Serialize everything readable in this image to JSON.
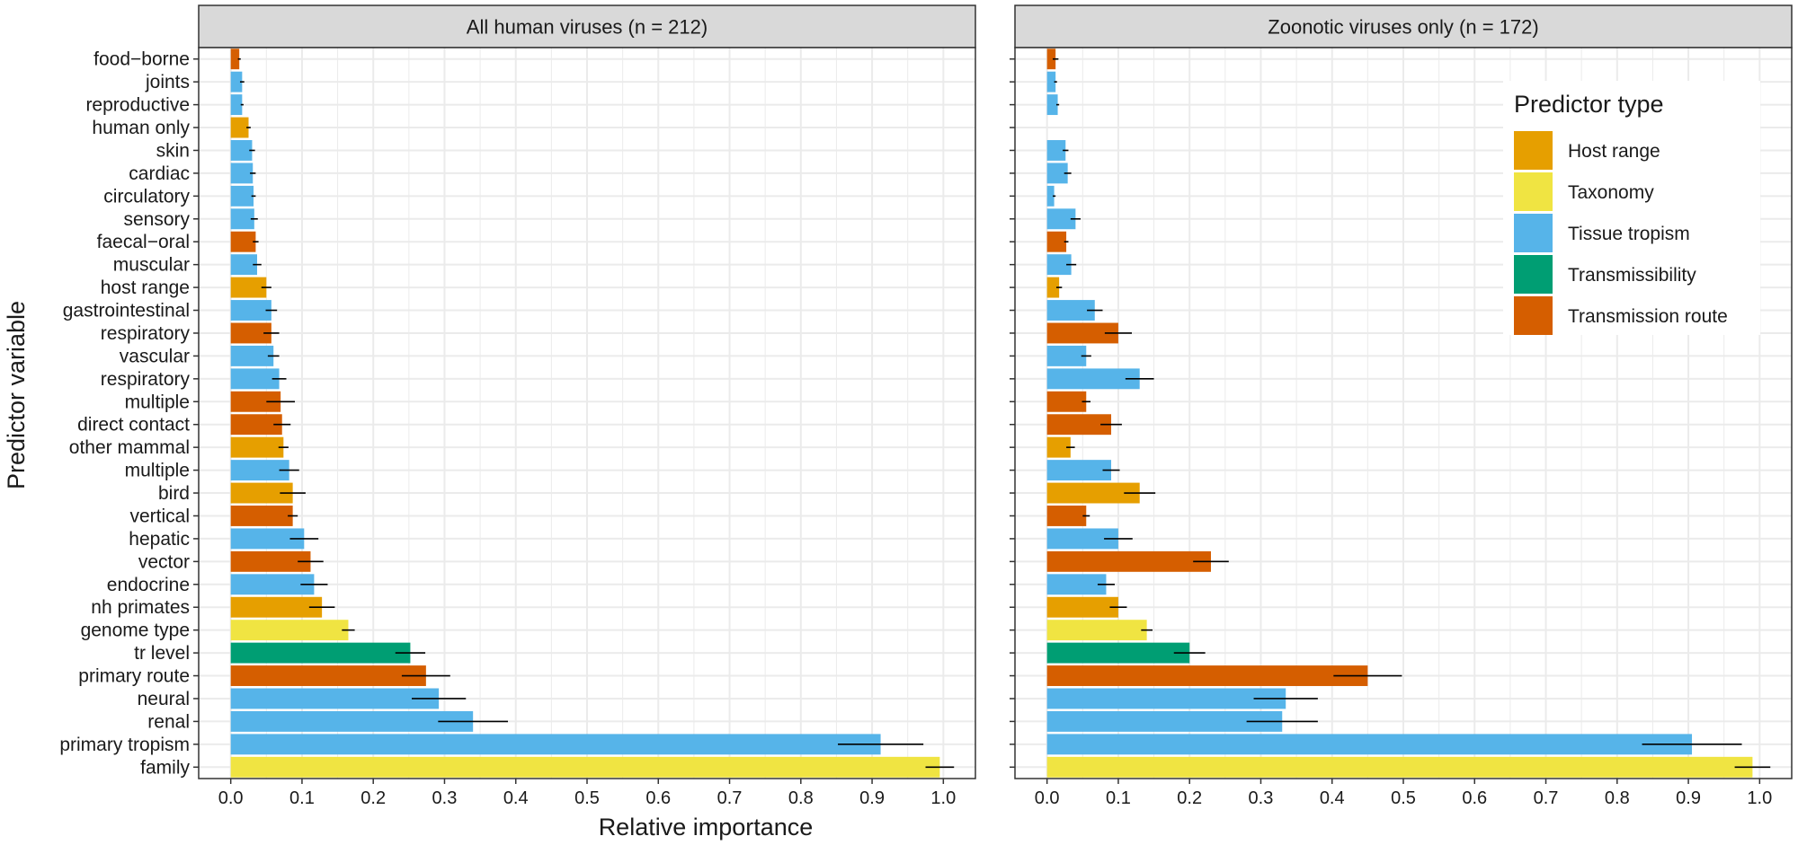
{
  "chart_data": {
    "type": "bar",
    "orientation": "horizontal",
    "xlabel": "Relative importance",
    "ylabel": "Predictor variable",
    "xlim": [
      0,
      1.0
    ],
    "xticks": [
      "0.0",
      "0.1",
      "0.2",
      "0.3",
      "0.4",
      "0.5",
      "0.6",
      "0.7",
      "0.8",
      "0.9",
      "1.0"
    ],
    "grid": true,
    "legend": {
      "title": "Predictor type",
      "placement": "top-right, inside right panel",
      "items": [
        {
          "label": "Host range",
          "color": "#E69F00"
        },
        {
          "label": "Taxonomy",
          "color": "#F0E442"
        },
        {
          "label": "Tissue tropism",
          "color": "#56B4E9"
        },
        {
          "label": "Transmissibility",
          "color": "#009E73"
        },
        {
          "label": "Transmission route",
          "color": "#D55E00"
        }
      ]
    },
    "categories": [
      "food−borne",
      "joints",
      "reproductive",
      "human only",
      "skin",
      "cardiac",
      "circulatory",
      "sensory",
      "faecal−oral",
      "muscular",
      "host range",
      "gastrointestinal",
      "respiratory",
      "vascular",
      "respiratory",
      "multiple",
      "direct contact",
      "other mammal",
      "multiple",
      "bird",
      "vertical",
      "hepatic",
      "vector",
      "endocrine",
      "nh primates",
      "genome type",
      "tr level",
      "primary route",
      "neural",
      "renal",
      "primary tropism",
      "family"
    ],
    "types": [
      "Transmission route",
      "Tissue tropism",
      "Tissue tropism",
      "Host range",
      "Tissue tropism",
      "Tissue tropism",
      "Tissue tropism",
      "Tissue tropism",
      "Transmission route",
      "Tissue tropism",
      "Host range",
      "Tissue tropism",
      "Transmission route",
      "Tissue tropism",
      "Tissue tropism",
      "Transmission route",
      "Transmission route",
      "Host range",
      "Tissue tropism",
      "Host range",
      "Transmission route",
      "Tissue tropism",
      "Transmission route",
      "Tissue tropism",
      "Host range",
      "Taxonomy",
      "Transmissibility",
      "Transmission route",
      "Tissue tropism",
      "Tissue tropism",
      "Tissue tropism",
      "Taxonomy"
    ],
    "panels": [
      {
        "title": "All human viruses (n = 212)",
        "values": [
          0.012,
          0.016,
          0.016,
          0.025,
          0.03,
          0.031,
          0.032,
          0.033,
          0.035,
          0.037,
          0.05,
          0.057,
          0.057,
          0.06,
          0.068,
          0.07,
          0.072,
          0.074,
          0.082,
          0.087,
          0.087,
          0.103,
          0.112,
          0.117,
          0.128,
          0.165,
          0.252,
          0.274,
          0.292,
          0.34,
          0.912,
          0.995
        ],
        "errors": [
          0.002,
          0.003,
          0.002,
          0.003,
          0.004,
          0.004,
          0.003,
          0.005,
          0.004,
          0.006,
          0.007,
          0.008,
          0.011,
          0.008,
          0.01,
          0.02,
          0.012,
          0.007,
          0.014,
          0.018,
          0.007,
          0.02,
          0.018,
          0.019,
          0.018,
          0.009,
          0.021,
          0.034,
          0.038,
          0.049,
          0.06,
          0.02
        ]
      },
      {
        "title": "Zoonotic viruses only (n = 172)",
        "values": [
          0.012,
          0.012,
          0.015,
          0.0,
          0.026,
          0.029,
          0.01,
          0.04,
          0.027,
          0.034,
          0.017,
          0.067,
          0.1,
          0.055,
          0.13,
          0.055,
          0.09,
          0.033,
          0.09,
          0.13,
          0.055,
          0.1,
          0.23,
          0.083,
          0.1,
          0.14,
          0.2,
          0.45,
          0.335,
          0.33,
          0.905,
          0.99
        ],
        "errors": [
          0.004,
          0.002,
          0.002,
          0.0,
          0.004,
          0.005,
          0.002,
          0.007,
          0.003,
          0.007,
          0.004,
          0.011,
          0.019,
          0.007,
          0.02,
          0.006,
          0.015,
          0.006,
          0.012,
          0.022,
          0.005,
          0.02,
          0.025,
          0.012,
          0.012,
          0.008,
          0.022,
          0.048,
          0.045,
          0.05,
          0.07,
          0.025
        ]
      }
    ]
  }
}
